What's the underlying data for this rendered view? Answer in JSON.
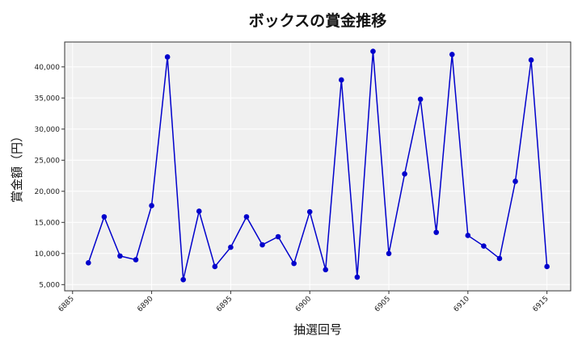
{
  "chart_data": {
    "type": "line",
    "title": "ボックスの賞金推移",
    "xlabel": "抽選回号",
    "ylabel": "賞金額（円）",
    "xlim": [
      6884.5,
      6916.5
    ],
    "ylim": [
      4000,
      44000
    ],
    "x_ticks": [
      6885,
      6890,
      6895,
      6900,
      6905,
      6910,
      6915
    ],
    "x_tick_labels": [
      "6885",
      "6890",
      "6895",
      "6900",
      "6905",
      "6910",
      "6915"
    ],
    "y_ticks": [
      5000,
      10000,
      15000,
      20000,
      25000,
      30000,
      35000,
      40000
    ],
    "y_tick_labels": [
      "5,000",
      "10,000",
      "15,000",
      "20,000",
      "25,000",
      "30,000",
      "35,000",
      "40,000"
    ],
    "grid": true,
    "series": [
      {
        "color": "#0000cc",
        "x": [
          6886,
          6887,
          6888,
          6889,
          6890,
          6891,
          6892,
          6893,
          6894,
          6895,
          6896,
          6897,
          6898,
          6899,
          6900,
          6901,
          6902,
          6903,
          6904,
          6905,
          6906,
          6907,
          6908,
          6909,
          6910,
          6911,
          6912,
          6913,
          6914,
          6915
        ],
        "values": [
          8500,
          15900,
          9600,
          9000,
          17700,
          41600,
          5800,
          16800,
          7900,
          11000,
          15900,
          11400,
          12700,
          8400,
          16700,
          7400,
          37900,
          6200,
          42500,
          10000,
          22800,
          34800,
          13400,
          42000,
          12900,
          11200,
          9200,
          21600,
          41100,
          7900
        ]
      }
    ]
  }
}
